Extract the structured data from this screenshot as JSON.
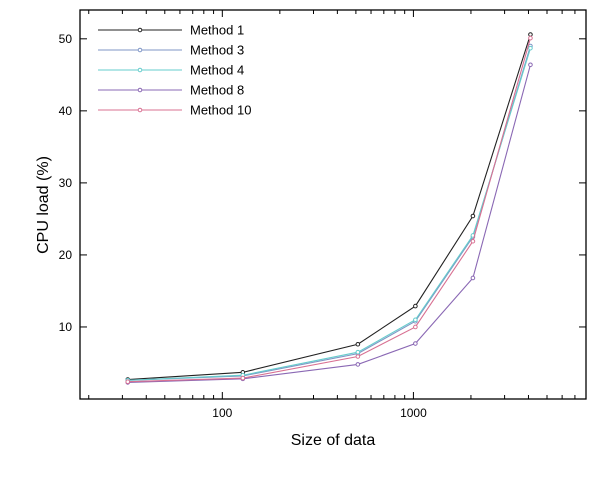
{
  "chart_data": {
    "type": "line",
    "title": "",
    "xlabel": "Size of data",
    "ylabel": "CPU load (%)",
    "xscale": "log",
    "xlim": [
      18,
      8000
    ],
    "ylim": [
      0,
      54
    ],
    "x_ticks": [
      100,
      1000
    ],
    "x_tick_labels": [
      "100",
      "1000"
    ],
    "y_ticks": [
      10,
      20,
      30,
      40,
      50
    ],
    "y_tick_labels": [
      "10",
      "20",
      "30",
      "40",
      "50"
    ],
    "legend_position": "top-left",
    "grid": false,
    "x": [
      32,
      128,
      512,
      1024,
      2048,
      4096
    ],
    "series": [
      {
        "name": "Method 1",
        "color": "#222222",
        "values": [
          2.7,
          3.7,
          7.6,
          12.9,
          25.4,
          50.6
        ]
      },
      {
        "name": "Method 3",
        "color": "#7f96c6",
        "values": [
          2.6,
          3.2,
          6.3,
          10.8,
          22.5,
          49.0
        ]
      },
      {
        "name": "Method 4",
        "color": "#66cccc",
        "values": [
          2.6,
          3.3,
          6.5,
          11.0,
          22.7,
          48.7
        ]
      },
      {
        "name": "Method 8",
        "color": "#8a68b4",
        "values": [
          2.3,
          2.8,
          4.8,
          7.7,
          16.8,
          46.4
        ]
      },
      {
        "name": "Method 10",
        "color": "#d87092",
        "values": [
          2.4,
          2.9,
          5.9,
          10.0,
          21.9,
          50.1
        ]
      }
    ]
  }
}
